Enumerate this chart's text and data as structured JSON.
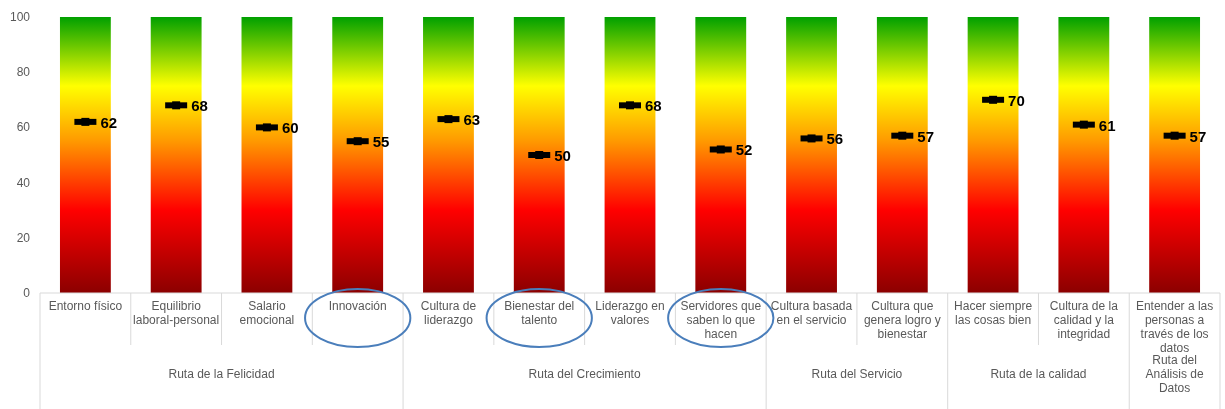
{
  "chart_data": {
    "type": "bar",
    "categories": [
      "Entorno físico",
      "Equilibrio laboral-personal",
      "Salario emocional",
      "Innovación",
      "Cultura de liderazgo",
      "Bienestar del talento",
      "Liderazgo en valores",
      "Servidores que saben lo que hacen",
      "Cultura basada en el servicio",
      "Cultura que genera logro y bienestar",
      "Hacer siempre las cosas bien",
      "Cultura de la calidad y la integridad",
      "Entender a las personas a través de los datos"
    ],
    "series": [
      {
        "color": "#ffff00",
        "values": [
          100,
          100,
          100,
          100,
          100,
          100,
          100,
          100,
          100,
          100,
          100,
          100,
          100
        ]
      },
      {
        "type": "scatter",
        "color": "#000000",
        "marker": "square",
        "data_labels": true,
        "values": [
          62,
          68,
          60,
          55,
          63,
          50,
          68,
          52,
          56,
          57,
          70,
          61,
          57
        ]
      }
    ],
    "annotations": [
      "Ruta de la Felicidad",
      "Ruta del Crecimiento",
      "Ruta del Servicio",
      "Ruta de la calidad",
      "Ruta del Análisis de Datos"
    ],
    "ylim": [
      0,
      100
    ],
    "yticks": [
      0,
      20,
      40,
      60,
      80,
      100
    ],
    "grid": false
  }
}
